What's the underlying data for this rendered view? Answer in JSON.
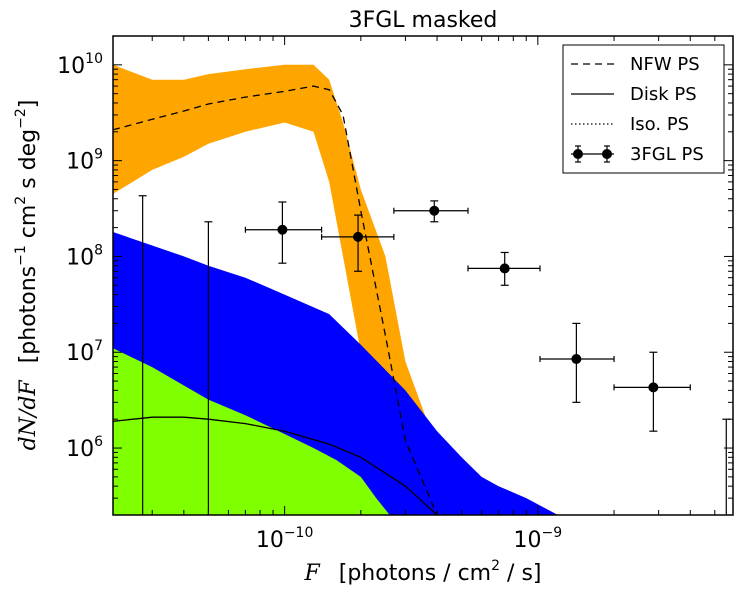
{
  "chart_data": {
    "type": "area",
    "title": "3FGL masked",
    "xlabel": {
      "symbol": "F",
      "text": "[photons / cm",
      "exp": "2",
      "tail": " / s]"
    },
    "ylabel": {
      "symbol": "dN/dF",
      "text": "[photons",
      "exp1": "−1",
      "mid": " cm",
      "exp2": "2",
      "mid2": "  s deg",
      "exp3": "−2",
      "end": "]"
    },
    "xscale": "log",
    "yscale": "log",
    "xlim": [
      2.1e-11,
      5.9e-09
    ],
    "ylim": [
      200000.0,
      20000000000.0
    ],
    "x_ticks": [
      {
        "value": 1e-10,
        "base": "10",
        "exp": "−10"
      },
      {
        "value": 1e-09,
        "base": "10",
        "exp": "−9"
      }
    ],
    "y_ticks": [
      {
        "value": 1000000.0,
        "base": "10",
        "exp": "6"
      },
      {
        "value": 10000000.0,
        "base": "10",
        "exp": "7"
      },
      {
        "value": 100000000.0,
        "base": "10",
        "exp": "8"
      },
      {
        "value": 1000000000.0,
        "base": "10",
        "exp": "9"
      },
      {
        "value": 10000000000.0,
        "base": "10",
        "exp": "10"
      }
    ],
    "grid": false,
    "legend_position": "top-right",
    "legend": [
      {
        "label": "NFW PS",
        "style": "dashed"
      },
      {
        "label": "Disk PS",
        "style": "solid"
      },
      {
        "label": "Iso. PS",
        "style": "dotted"
      },
      {
        "label": "3FGL PS",
        "style": "errorbar"
      }
    ],
    "bands": [
      {
        "name": "NFW PS",
        "color": "#ffa500",
        "x": [
          2.1e-11,
          3e-11,
          4e-11,
          5e-11,
          7e-11,
          1e-10,
          1.3e-10,
          1.5e-10,
          1.7e-10,
          2e-10,
          2.5e-10,
          3e-10,
          4e-10,
          5e-10
        ],
        "lower": [
          450000000.0,
          800000000.0,
          1100000000.0,
          1500000000.0,
          2000000000.0,
          2500000000.0,
          2000000000.0,
          600000000.0,
          100000000.0,
          10000000.0,
          400000.0,
          200000.0,
          200000.0,
          200000.0
        ],
        "upper": [
          10000000000.0,
          7000000000.0,
          7000000000.0,
          8000000000.0,
          9000000000.0,
          10000000000.0,
          10000000000.0,
          7000000000.0,
          2500000000.0,
          500000000.0,
          100000000.0,
          8000000.0,
          1000000.0,
          200000.0
        ],
        "median": [
          2100000000.0,
          2700000000.0,
          3300000000.0,
          3900000000.0,
          4600000000.0,
          5300000000.0,
          6000000000.0,
          5500000000.0,
          3000000000.0,
          300000000.0,
          15000000.0,
          1200000.0,
          200000.0,
          null
        ]
      },
      {
        "name": "Disk PS",
        "color": "#0000ff",
        "x": [
          2.1e-11,
          3e-11,
          4e-11,
          5e-11,
          7e-11,
          1e-10,
          1.5e-10,
          2e-10,
          3e-10,
          4e-10,
          5e-10,
          6e-10,
          7e-10,
          9e-10,
          1.2e-09
        ],
        "lower": [
          200000.0,
          200000.0,
          200000.0,
          200000.0,
          200000.0,
          200000.0,
          200000.0,
          200000.0,
          200000.0,
          200000.0,
          200000.0,
          200000.0,
          200000.0,
          200000.0,
          200000.0
        ],
        "upper": [
          180000000.0,
          130000000.0,
          100000000.0,
          80000000.0,
          60000000.0,
          40000000.0,
          25000000.0,
          12000000.0,
          4000000.0,
          1500000.0,
          800000.0,
          500000.0,
          400000.0,
          300000.0,
          200000.0
        ],
        "median": [
          1900000.0,
          2100000.0,
          2100000.0,
          2000000.0,
          1800000.0,
          1500000.0,
          1100000.0,
          800000.0,
          400000.0,
          200000.0,
          null,
          null,
          null,
          null,
          null
        ]
      },
      {
        "name": "Iso. PS",
        "color": "#7fff00",
        "x": [
          2.1e-11,
          3e-11,
          4e-11,
          5e-11,
          7e-11,
          1e-10,
          1.3e-10,
          1.6e-10,
          2e-10,
          2.3e-10,
          2.6e-10
        ],
        "lower": [
          200000.0,
          200000.0,
          200000.0,
          200000.0,
          200000.0,
          200000.0,
          200000.0,
          200000.0,
          200000.0,
          200000.0,
          200000.0
        ],
        "upper": [
          11000000.0,
          7000000.0,
          4500000.0,
          3200000.0,
          2200000.0,
          1400000.0,
          1000000.0,
          750000.0,
          500000.0,
          300000.0,
          200000.0
        ]
      }
    ],
    "points": {
      "name": "3FGL PS",
      "x": [
        9.8e-11,
        1.95e-10,
        3.9e-10,
        7.4e-10,
        1.42e-09,
        2.86e-09
      ],
      "y": [
        190000000.0,
        160000000.0,
        300000000.0,
        75000000.0,
        8500000.0,
        4300000.0
      ],
      "xerr_low": [
        7e-11,
        1.4e-10,
        2.7e-10,
        5.3e-10,
        1.02e-09,
        2e-09
      ],
      "xerr_high": [
        1.4e-10,
        2.7e-10,
        5.3e-10,
        1.02e-09,
        2e-09,
        4e-09
      ],
      "yerr_low": [
        85000000.0,
        70000000.0,
        230000000.0,
        50000000.0,
        3000000.0,
        1500000.0
      ],
      "yerr_high": [
        370000000.0,
        270000000.0,
        380000000.0,
        110000000.0,
        20000000.0,
        10000000.0
      ]
    },
    "upper_limits": {
      "x": [
        2.75e-11,
        5e-11,
        5.55e-09
      ],
      "y": [
        430000000.0,
        230000000.0,
        2000000.0
      ]
    }
  }
}
